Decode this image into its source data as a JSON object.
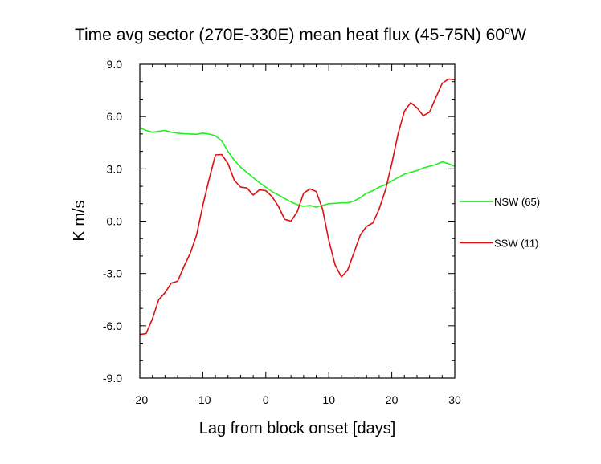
{
  "chart_data": {
    "type": "line",
    "title": "Time avg sector (270E-330E) mean heat flux (45-75N) 60",
    "title_superscript": "o",
    "title_suffix": "W",
    "xlabel": "Lag from block onset [days]",
    "ylabel": "K m/s",
    "xlim": [
      -20,
      30
    ],
    "ylim": [
      -9,
      9
    ],
    "xticks": [
      -20,
      -10,
      0,
      10,
      20,
      30
    ],
    "xtick_labels": [
      "-20",
      "-10",
      "0",
      "10",
      "20",
      "30"
    ],
    "yticks": [
      -9,
      -6,
      -3,
      0,
      3,
      6,
      9
    ],
    "ytick_labels": [
      "-9.0",
      "-6.0",
      "-3.0",
      "0.0",
      "3.0",
      "6.0",
      "9.0"
    ],
    "grid": false,
    "legend_position": "right, outside plot",
    "x": [
      -20,
      -19,
      -18,
      -17,
      -16,
      -15,
      -14,
      -13,
      -12,
      -11,
      -10,
      -9,
      -8,
      -7,
      -6,
      -5,
      -4,
      -3,
      -2,
      -1,
      0,
      1,
      2,
      3,
      4,
      5,
      6,
      7,
      8,
      9,
      10,
      11,
      12,
      13,
      14,
      15,
      16,
      17,
      18,
      19,
      20,
      21,
      22,
      23,
      24,
      25,
      26,
      27,
      28,
      29,
      30
    ],
    "series": [
      {
        "name": "NSW (65)",
        "color": "#22ee22",
        "values": [
          5.35,
          5.2,
          5.1,
          5.15,
          5.2,
          5.1,
          5.05,
          5.02,
          5.0,
          4.98,
          5.05,
          5.0,
          4.9,
          4.6,
          4.0,
          3.5,
          3.1,
          2.8,
          2.5,
          2.2,
          1.95,
          1.7,
          1.5,
          1.3,
          1.1,
          0.95,
          0.85,
          0.9,
          0.8,
          0.9,
          1.0,
          1.02,
          1.05,
          1.05,
          1.15,
          1.35,
          1.6,
          1.75,
          1.95,
          2.1,
          2.3,
          2.5,
          2.7,
          2.8,
          2.9,
          3.05,
          3.15,
          3.25,
          3.4,
          3.3,
          3.15
        ]
      },
      {
        "name": "SSW (11)",
        "color": "#dd1111",
        "values": [
          -6.5,
          -6.45,
          -5.6,
          -4.5,
          -4.1,
          -3.55,
          -3.45,
          -2.6,
          -1.85,
          -0.8,
          0.9,
          2.4,
          3.8,
          3.82,
          3.3,
          2.35,
          1.95,
          1.9,
          1.5,
          1.8,
          1.75,
          1.4,
          0.85,
          0.1,
          0.0,
          0.55,
          1.6,
          1.85,
          1.7,
          0.7,
          -1.1,
          -2.5,
          -3.2,
          -2.8,
          -1.8,
          -0.8,
          -0.3,
          -0.1,
          0.7,
          1.8,
          3.3,
          5.0,
          6.3,
          6.8,
          6.5,
          6.05,
          6.25,
          7.1,
          7.9,
          8.15,
          8.1
        ]
      }
    ]
  }
}
